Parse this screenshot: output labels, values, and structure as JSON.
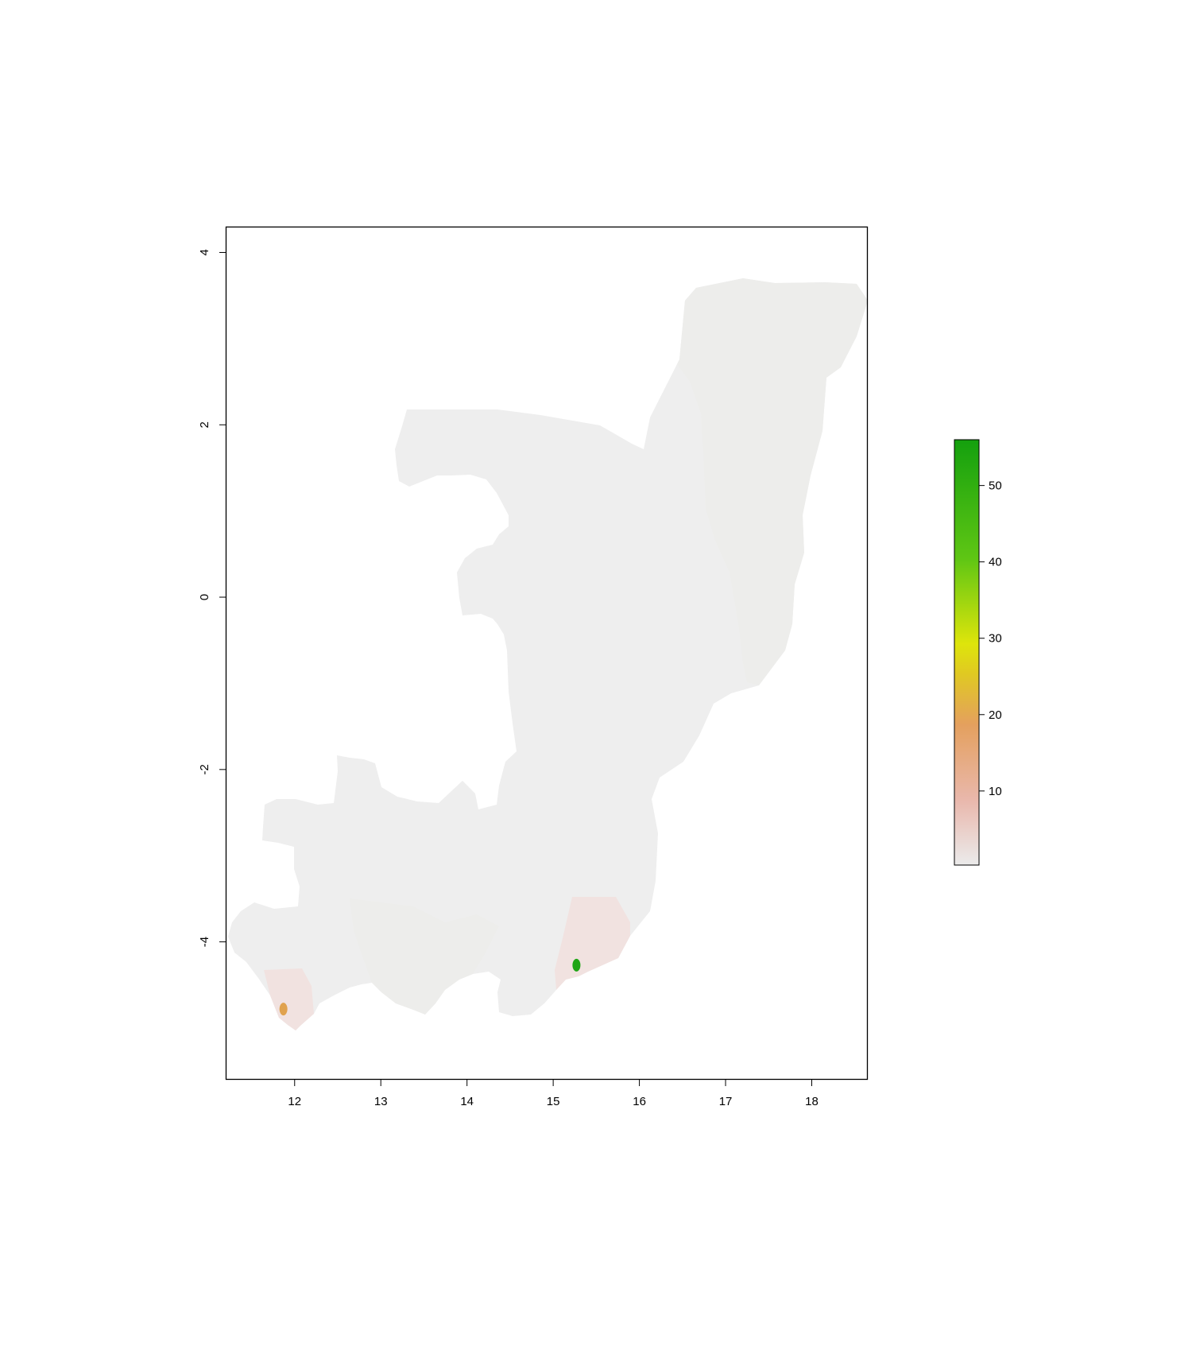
{
  "map": {
    "x_ticks": [
      "12",
      "13",
      "14",
      "15",
      "16",
      "17",
      "18"
    ],
    "y_ticks": [
      "4",
      "2",
      "0",
      "-2",
      "-4"
    ],
    "x_range": [
      11.2,
      18.65
    ],
    "y_range": [
      -5.6,
      4.3
    ]
  },
  "legend": {
    "ticks": [
      "10",
      "20",
      "30",
      "40",
      "50"
    ],
    "range": [
      0.3,
      56
    ],
    "colors": [
      "#ebebeb",
      "#e9b8ad",
      "#e4a05e",
      "#e0c922",
      "#dee50b",
      "#5fc614",
      "#14a00e"
    ]
  },
  "highlights": [
    {
      "name": "hotspot-green",
      "lon": 15.27,
      "lat": -4.27,
      "value": 55,
      "color": "#1fa516"
    },
    {
      "name": "hotspot-orange",
      "lon": 11.87,
      "lat": -4.78,
      "value": 20,
      "color": "#e0a24e"
    }
  ],
  "colors": {
    "land": "#eeeeee",
    "east_region": "#ededeb",
    "pinkish_region": "#f1e2e0",
    "frame": "#000000"
  }
}
